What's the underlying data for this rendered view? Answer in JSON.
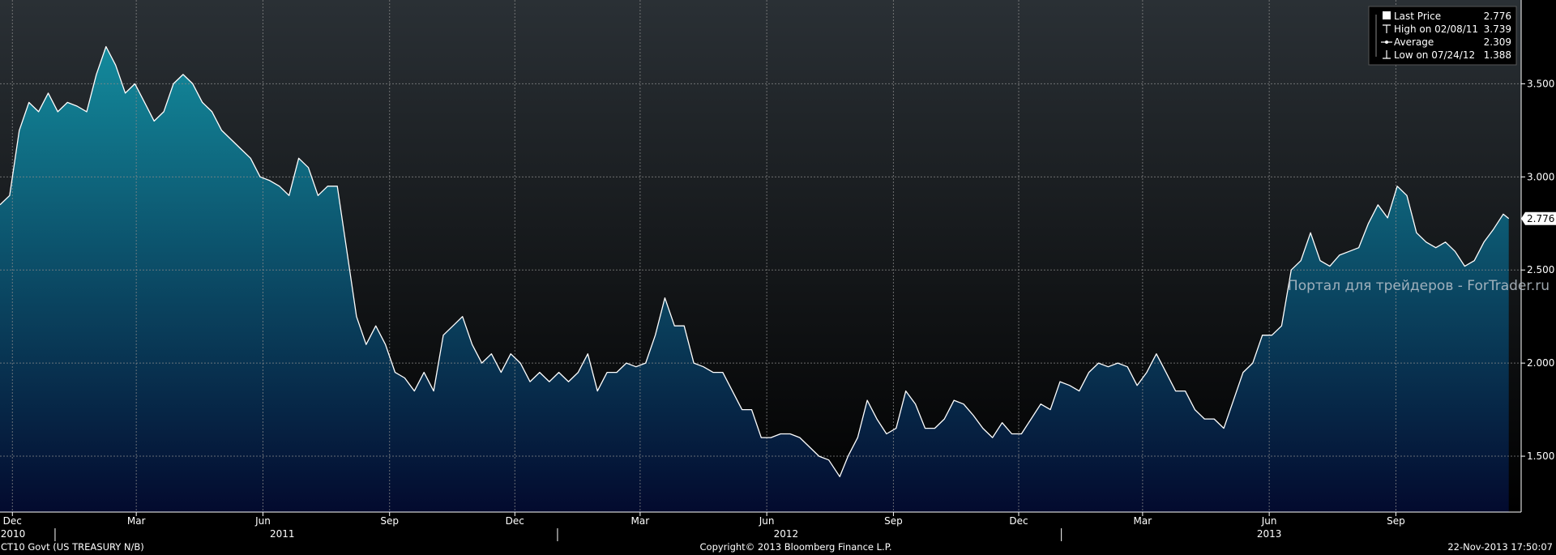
{
  "colors": {
    "background_top": "#2a3035",
    "background_bottom": "#000000",
    "area_top": "#138a9c",
    "area_bottom": "#030a2e",
    "line": "#ffffff",
    "grid": "#8a8a8a"
  },
  "legend": {
    "items": [
      {
        "icon": "square-icon",
        "label": "Last Price",
        "value": "2.776"
      },
      {
        "icon": "high-marker-icon",
        "label": "High on 02/08/11",
        "value": "3.739"
      },
      {
        "icon": "average-marker-icon",
        "label": "Average",
        "value": "2.309"
      },
      {
        "icon": "low-marker-icon",
        "label": "Low on 07/24/12",
        "value": "1.388"
      }
    ]
  },
  "watermark": "Портал для трейдеров - ForTrader.ru",
  "footer": {
    "ticker": "CT10 Govt (US TREASURY N/B)",
    "copyright": "Copyright© 2013 Bloomberg Finance L.P.",
    "timestamp": "22-Nov-2013 17:50:07"
  },
  "chart_data": {
    "type": "area",
    "ylim": [
      1.2,
      3.95
    ],
    "y_ticks": [
      "1.500",
      "2.000",
      "2.500",
      "3.000",
      "3.500"
    ],
    "last_value_label": "2.776",
    "x_month_labels": [
      {
        "label": "Dec",
        "date": "2010-12-01"
      },
      {
        "label": "Mar",
        "date": "2011-03-01"
      },
      {
        "label": "Jun",
        "date": "2011-06-01"
      },
      {
        "label": "Sep",
        "date": "2011-09-01"
      },
      {
        "label": "Dec",
        "date": "2011-12-01"
      },
      {
        "label": "Mar",
        "date": "2012-03-01"
      },
      {
        "label": "Jun",
        "date": "2012-06-01"
      },
      {
        "label": "Sep",
        "date": "2012-09-01"
      },
      {
        "label": "Dec",
        "date": "2012-12-01"
      },
      {
        "label": "Mar",
        "date": "2013-03-01"
      },
      {
        "label": "Jun",
        "date": "2013-06-01"
      },
      {
        "label": "Sep",
        "date": "2013-09-01"
      }
    ],
    "x_year_labels": [
      {
        "label": "2010",
        "date": "2010-12-01"
      },
      {
        "label": "2011",
        "date": "2011-06-15"
      },
      {
        "label": "2012",
        "date": "2012-06-15"
      },
      {
        "label": "2013",
        "date": "2013-06-01"
      }
    ],
    "x_range": [
      "2010-11-22",
      "2013-12-01"
    ],
    "series": [
      {
        "values": [
          [
            "2010-11-22",
            2.85
          ],
          [
            "2010-11-29",
            2.9
          ],
          [
            "2010-12-06",
            3.25
          ],
          [
            "2010-12-13",
            3.4
          ],
          [
            "2010-12-20",
            3.35
          ],
          [
            "2010-12-27",
            3.45
          ],
          [
            "2011-01-03",
            3.35
          ],
          [
            "2011-01-10",
            3.4
          ],
          [
            "2011-01-17",
            3.38
          ],
          [
            "2011-01-24",
            3.35
          ],
          [
            "2011-01-31",
            3.55
          ],
          [
            "2011-02-07",
            3.7
          ],
          [
            "2011-02-14",
            3.6
          ],
          [
            "2011-02-21",
            3.45
          ],
          [
            "2011-02-28",
            3.5
          ],
          [
            "2011-03-07",
            3.4
          ],
          [
            "2011-03-14",
            3.3
          ],
          [
            "2011-03-21",
            3.35
          ],
          [
            "2011-03-28",
            3.5
          ],
          [
            "2011-04-04",
            3.55
          ],
          [
            "2011-04-11",
            3.5
          ],
          [
            "2011-04-18",
            3.4
          ],
          [
            "2011-04-25",
            3.35
          ],
          [
            "2011-05-02",
            3.25
          ],
          [
            "2011-05-09",
            3.2
          ],
          [
            "2011-05-16",
            3.15
          ],
          [
            "2011-05-23",
            3.1
          ],
          [
            "2011-05-30",
            3.0
          ],
          [
            "2011-06-06",
            2.98
          ],
          [
            "2011-06-13",
            2.95
          ],
          [
            "2011-06-20",
            2.9
          ],
          [
            "2011-06-27",
            3.1
          ],
          [
            "2011-07-04",
            3.05
          ],
          [
            "2011-07-11",
            2.9
          ],
          [
            "2011-07-18",
            2.95
          ],
          [
            "2011-07-25",
            2.95
          ],
          [
            "2011-08-01",
            2.6
          ],
          [
            "2011-08-08",
            2.25
          ],
          [
            "2011-08-15",
            2.1
          ],
          [
            "2011-08-22",
            2.2
          ],
          [
            "2011-08-29",
            2.1
          ],
          [
            "2011-09-05",
            1.95
          ],
          [
            "2011-09-12",
            1.92
          ],
          [
            "2011-09-19",
            1.85
          ],
          [
            "2011-09-26",
            1.95
          ],
          [
            "2011-10-03",
            1.85
          ],
          [
            "2011-10-10",
            2.15
          ],
          [
            "2011-10-17",
            2.2
          ],
          [
            "2011-10-24",
            2.25
          ],
          [
            "2011-10-31",
            2.1
          ],
          [
            "2011-11-07",
            2.0
          ],
          [
            "2011-11-14",
            2.05
          ],
          [
            "2011-11-21",
            1.95
          ],
          [
            "2011-11-28",
            2.05
          ],
          [
            "2011-12-05",
            2.0
          ],
          [
            "2011-12-12",
            1.9
          ],
          [
            "2011-12-19",
            1.95
          ],
          [
            "2011-12-26",
            1.9
          ],
          [
            "2012-01-02",
            1.95
          ],
          [
            "2012-01-09",
            1.9
          ],
          [
            "2012-01-16",
            1.95
          ],
          [
            "2012-01-23",
            2.05
          ],
          [
            "2012-01-30",
            1.85
          ],
          [
            "2012-02-06",
            1.95
          ],
          [
            "2012-02-13",
            1.95
          ],
          [
            "2012-02-20",
            2.0
          ],
          [
            "2012-02-27",
            1.98
          ],
          [
            "2012-03-05",
            2.0
          ],
          [
            "2012-03-12",
            2.15
          ],
          [
            "2012-03-19",
            2.35
          ],
          [
            "2012-03-26",
            2.2
          ],
          [
            "2012-04-02",
            2.2
          ],
          [
            "2012-04-09",
            2.0
          ],
          [
            "2012-04-16",
            1.98
          ],
          [
            "2012-04-23",
            1.95
          ],
          [
            "2012-04-30",
            1.95
          ],
          [
            "2012-05-07",
            1.85
          ],
          [
            "2012-05-14",
            1.75
          ],
          [
            "2012-05-21",
            1.75
          ],
          [
            "2012-05-28",
            1.6
          ],
          [
            "2012-06-04",
            1.6
          ],
          [
            "2012-06-11",
            1.62
          ],
          [
            "2012-06-18",
            1.62
          ],
          [
            "2012-06-25",
            1.6
          ],
          [
            "2012-07-02",
            1.55
          ],
          [
            "2012-07-09",
            1.5
          ],
          [
            "2012-07-16",
            1.48
          ],
          [
            "2012-07-24",
            1.39
          ],
          [
            "2012-07-30",
            1.5
          ],
          [
            "2012-08-06",
            1.6
          ],
          [
            "2012-08-13",
            1.8
          ],
          [
            "2012-08-20",
            1.7
          ],
          [
            "2012-08-27",
            1.62
          ],
          [
            "2012-09-03",
            1.65
          ],
          [
            "2012-09-10",
            1.85
          ],
          [
            "2012-09-17",
            1.78
          ],
          [
            "2012-09-24",
            1.65
          ],
          [
            "2012-10-01",
            1.65
          ],
          [
            "2012-10-08",
            1.7
          ],
          [
            "2012-10-15",
            1.8
          ],
          [
            "2012-10-22",
            1.78
          ],
          [
            "2012-10-29",
            1.72
          ],
          [
            "2012-11-05",
            1.65
          ],
          [
            "2012-11-12",
            1.6
          ],
          [
            "2012-11-19",
            1.68
          ],
          [
            "2012-11-26",
            1.62
          ],
          [
            "2012-12-03",
            1.62
          ],
          [
            "2012-12-10",
            1.7
          ],
          [
            "2012-12-17",
            1.78
          ],
          [
            "2012-12-24",
            1.75
          ],
          [
            "2012-12-31",
            1.9
          ],
          [
            "2013-01-07",
            1.88
          ],
          [
            "2013-01-14",
            1.85
          ],
          [
            "2013-01-21",
            1.95
          ],
          [
            "2013-01-28",
            2.0
          ],
          [
            "2013-02-04",
            1.98
          ],
          [
            "2013-02-11",
            2.0
          ],
          [
            "2013-02-18",
            1.98
          ],
          [
            "2013-02-25",
            1.88
          ],
          [
            "2013-03-04",
            1.95
          ],
          [
            "2013-03-11",
            2.05
          ],
          [
            "2013-03-18",
            1.95
          ],
          [
            "2013-03-25",
            1.85
          ],
          [
            "2013-04-01",
            1.85
          ],
          [
            "2013-04-08",
            1.75
          ],
          [
            "2013-04-15",
            1.7
          ],
          [
            "2013-04-22",
            1.7
          ],
          [
            "2013-04-29",
            1.65
          ],
          [
            "2013-05-06",
            1.8
          ],
          [
            "2013-05-13",
            1.95
          ],
          [
            "2013-05-20",
            2.0
          ],
          [
            "2013-05-27",
            2.15
          ],
          [
            "2013-06-03",
            2.15
          ],
          [
            "2013-06-10",
            2.2
          ],
          [
            "2013-06-17",
            2.5
          ],
          [
            "2013-06-24",
            2.55
          ],
          [
            "2013-07-01",
            2.7
          ],
          [
            "2013-07-08",
            2.55
          ],
          [
            "2013-07-15",
            2.52
          ],
          [
            "2013-07-22",
            2.58
          ],
          [
            "2013-07-29",
            2.6
          ],
          [
            "2013-08-05",
            2.62
          ],
          [
            "2013-08-12",
            2.75
          ],
          [
            "2013-08-19",
            2.85
          ],
          [
            "2013-08-26",
            2.78
          ],
          [
            "2013-09-02",
            2.95
          ],
          [
            "2013-09-09",
            2.9
          ],
          [
            "2013-09-16",
            2.7
          ],
          [
            "2013-09-23",
            2.65
          ],
          [
            "2013-09-30",
            2.62
          ],
          [
            "2013-10-07",
            2.65
          ],
          [
            "2013-10-14",
            2.6
          ],
          [
            "2013-10-21",
            2.52
          ],
          [
            "2013-10-28",
            2.55
          ],
          [
            "2013-11-04",
            2.65
          ],
          [
            "2013-11-11",
            2.72
          ],
          [
            "2013-11-18",
            2.8
          ],
          [
            "2013-11-22",
            2.776
          ]
        ]
      }
    ]
  }
}
